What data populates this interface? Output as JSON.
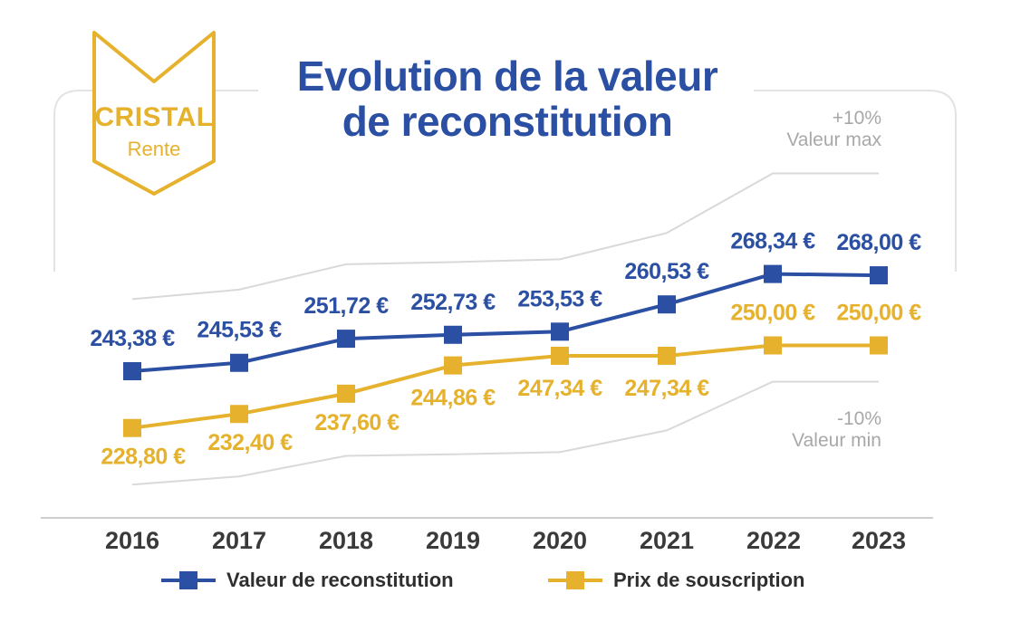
{
  "logo": {
    "brand": "CRISTAL",
    "product": "Rente"
  },
  "title": {
    "line1": "Evolution de la valeur",
    "line2": "de reconstitution"
  },
  "band": {
    "upper_pct": "+10%",
    "upper_label": "Valeur max",
    "lower_pct": "-10%",
    "lower_label": "Valeur min"
  },
  "colors": {
    "blue": "#2b4fa2",
    "gold": "#e6b22d",
    "band_line": "#d9d9d9",
    "axis": "#cfcfcf",
    "tick_text": "#3a3a3a"
  },
  "legend": [
    {
      "label": "Valeur de reconstitution",
      "color": "#2b4fa2"
    },
    {
      "label": "Prix de souscription",
      "color": "#e6b22d"
    }
  ],
  "chart_data": {
    "type": "line",
    "x": [
      "2016",
      "2017",
      "2018",
      "2019",
      "2020",
      "2021",
      "2022",
      "2023"
    ],
    "series": [
      {
        "name": "Valeur de reconstitution",
        "color": "#2b4fa2",
        "values": [
          243.38,
          245.53,
          251.72,
          252.73,
          253.53,
          260.53,
          268.34,
          268.0
        ],
        "labels": [
          "243,38 €",
          "245,53 €",
          "251,72 €",
          "252,73 €",
          "253,53 €",
          "260,53 €",
          "268,34 €",
          "268,00 €"
        ],
        "marker": "square"
      },
      {
        "name": "Prix de souscription",
        "color": "#e6b22d",
        "values": [
          228.8,
          232.4,
          237.6,
          244.86,
          247.34,
          247.34,
          250.0,
          250.0
        ],
        "labels": [
          "228,80 €",
          "232,40 €",
          "237,60 €",
          "244,86 €",
          "247,34 €",
          "247,34 €",
          "250,00 €",
          "250,00 €"
        ],
        "marker": "square"
      }
    ],
    "band": {
      "upper": [
        261.87,
        264.31,
        270.84,
        271.39,
        272.1,
        278.87,
        294.17,
        294.17
      ],
      "lower": [
        214.26,
        216.37,
        221.64,
        222.05,
        222.61,
        228.17,
        240.69,
        240.69
      ]
    },
    "ylim": [
      212,
      298
    ],
    "grid": false,
    "legend_position": "bottom"
  }
}
